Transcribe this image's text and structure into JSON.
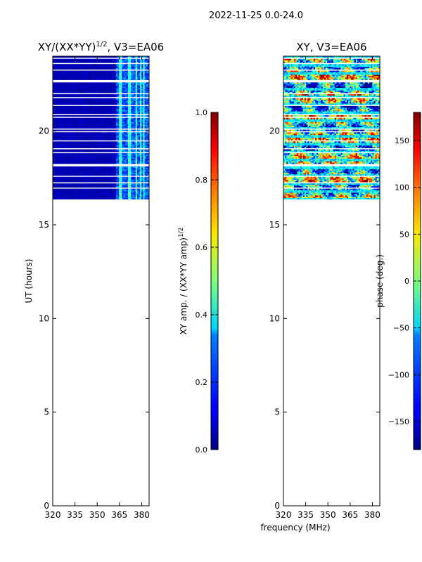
{
  "figure": {
    "suptitle": "2022-11-25 0.0-24.0",
    "xlabel": "frequency (MHz)"
  },
  "colors": {
    "data_block_dark": "#00008b",
    "gap_white": "#ffffff"
  },
  "chart_data": [
    {
      "type": "heatmap",
      "title_main": "XY/(XX*YY)",
      "title_sup": "1/2",
      "title_rest": ", V3=EA06",
      "xlabel": "",
      "ylabel": "UT (hours)",
      "xlim": [
        320,
        385
      ],
      "ylim": [
        0,
        24
      ],
      "xticks": [
        320,
        335,
        350,
        365,
        380
      ],
      "xtick_labels": [
        "320",
        "335",
        "350",
        "365",
        "380"
      ],
      "yticks": [
        0,
        5,
        10,
        15,
        20
      ],
      "ytick_labels": [
        "0",
        "5",
        "10",
        "15",
        "20"
      ],
      "data_ut_range": [
        16.3,
        24.0
      ],
      "data_note": "amplitude mostly low (~0.05) at 320-361 MHz, elevated (~0.3-0.5) in bands near 362-384 MHz",
      "colorbar": {
        "label": "XY amp. / (XX*YY amp)",
        "label_sup": "1/2",
        "range": [
          0.0,
          1.0
        ],
        "ticks": [
          0.0,
          0.2,
          0.4,
          0.6,
          0.8,
          1.0
        ],
        "tick_labels": [
          "0.0",
          "0.2",
          "0.4",
          "0.6",
          "0.8",
          "1.0"
        ],
        "colormap": "jet"
      }
    },
    {
      "type": "heatmap",
      "title_main": "XY, V3=EA06",
      "xlabel": "",
      "ylabel": "",
      "xlim": [
        320,
        385
      ],
      "ylim": [
        0,
        24
      ],
      "xticks": [
        320,
        335,
        350,
        365,
        380
      ],
      "xtick_labels": [
        "320",
        "335",
        "350",
        "365",
        "380"
      ],
      "yticks": [
        0,
        5,
        10,
        15,
        20
      ],
      "ytick_labels": [
        "0",
        "5",
        "10",
        "15",
        "20"
      ],
      "data_ut_range": [
        16.3,
        24.0
      ],
      "data_note": "phase varies widely across full range, roughly -180 to 180 deg",
      "colorbar": {
        "label": "phase (deg.)",
        "range": [
          -180,
          180
        ],
        "ticks": [
          -150,
          -100,
          -50,
          0,
          50,
          100,
          150
        ],
        "tick_labels": [
          "−150",
          "−100",
          "−50",
          "0",
          "50",
          "100",
          "150"
        ],
        "colormap": "jet"
      }
    }
  ]
}
